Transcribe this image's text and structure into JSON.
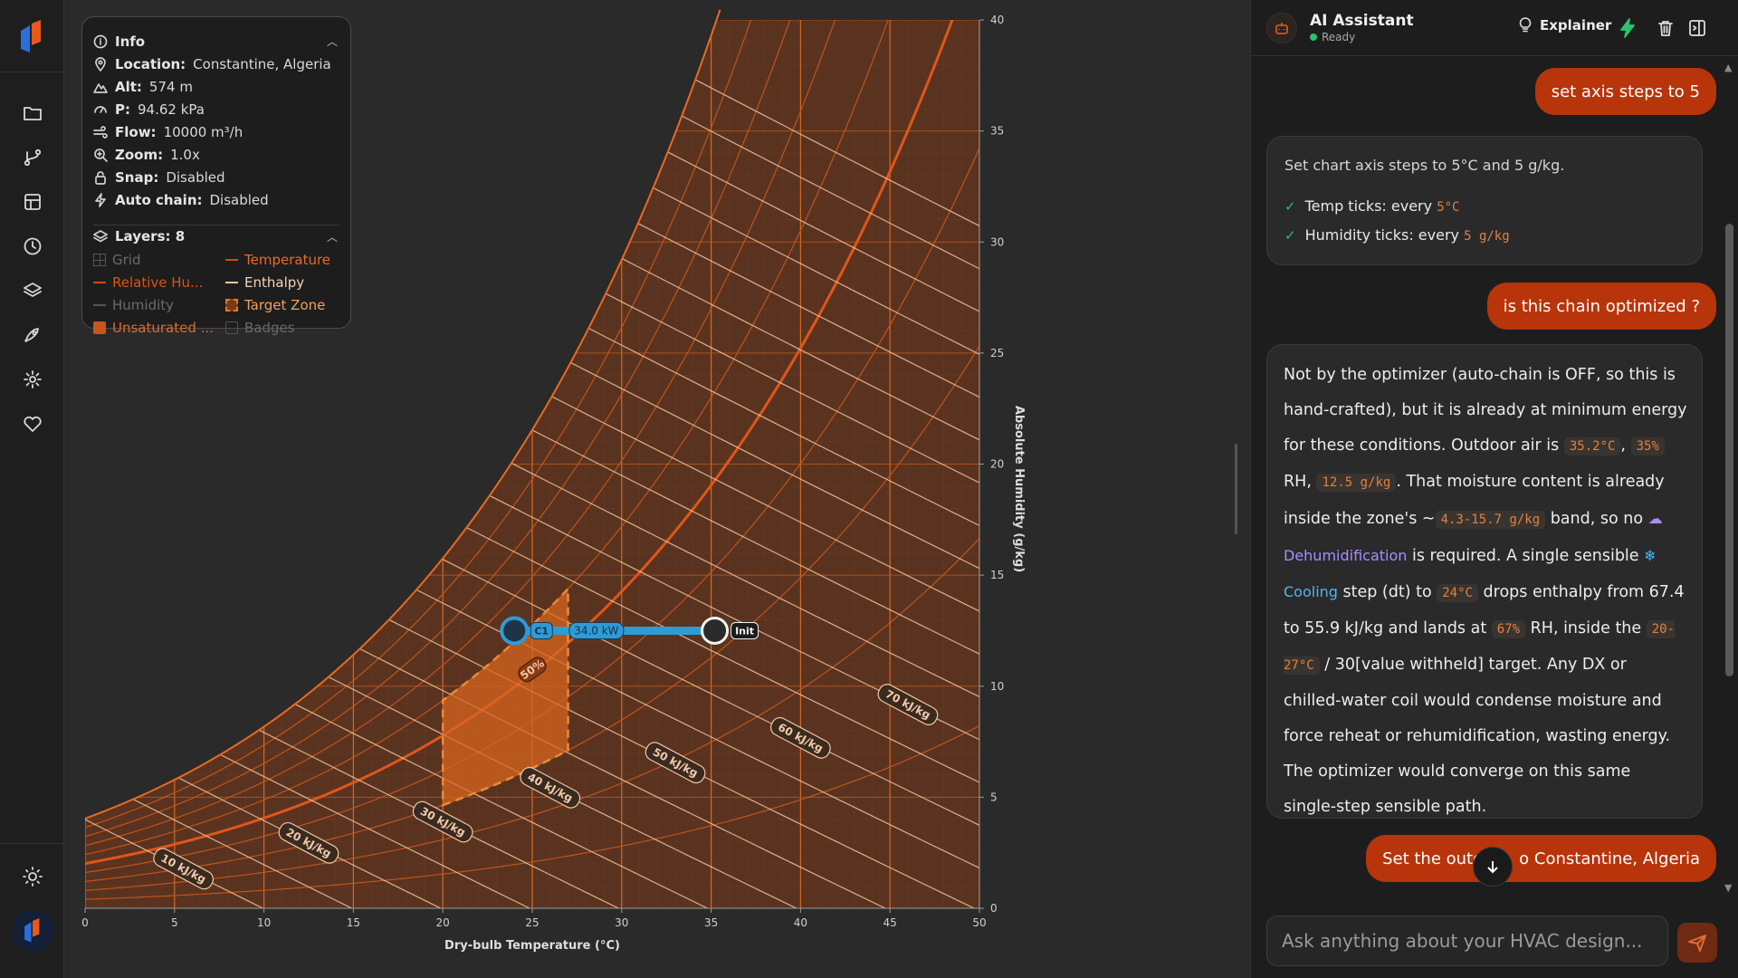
{
  "colors": {
    "accent": "#c8400d",
    "chain_blue": "#2f9bd6",
    "zone_fill": "#c8561a",
    "background": "#2a2a2a",
    "panel": "#1d1d1d"
  },
  "rail": {
    "icons": [
      "folder-icon",
      "git-branch-icon",
      "table-icon",
      "clock-icon",
      "layers-icon",
      "rocket-icon",
      "settings-icon",
      "heart-icon",
      "sun-icon"
    ]
  },
  "info": {
    "title": "Info",
    "rows": [
      {
        "key": "Location:",
        "value": "Constantine, Algeria",
        "icon": "location-pin-icon"
      },
      {
        "key": "Alt:",
        "value": "574 m",
        "icon": "mountain-icon"
      },
      {
        "key": "P:",
        "value": "94.62 kPa",
        "icon": "gauge-icon"
      },
      {
        "key": "Flow:",
        "value": "10000 m³/h",
        "icon": "wind-icon"
      },
      {
        "key": "Zoom:",
        "value": "1.0x",
        "icon": "zoom-icon"
      },
      {
        "key": "Snap:",
        "value": "Disabled",
        "icon": "lock-icon"
      },
      {
        "key": "Auto chain:",
        "value": "Disabled",
        "icon": "bolt-icon"
      }
    ],
    "layers_title": "Layers: 8",
    "layers": [
      {
        "label": "Grid",
        "on": false,
        "style": "grid"
      },
      {
        "label": "Temperature",
        "on": true,
        "style": "line"
      },
      {
        "label": "Relative Hu...",
        "on": true,
        "style": "line"
      },
      {
        "label": "Enthalpy",
        "on": true,
        "style": "line-light"
      },
      {
        "label": "Humidity",
        "on": false,
        "style": "line"
      },
      {
        "label": "Target Zone",
        "on": true,
        "style": "dashed"
      },
      {
        "label": "Unsaturated ...",
        "on": true,
        "style": "fill"
      },
      {
        "label": "Badges",
        "on": false,
        "style": "badge"
      }
    ]
  },
  "chart": {
    "xlabel": "Dry-bulb Temperature (°C)",
    "ylabel": "Absolute Humidity (g/kg)",
    "x_ticks": [
      "0",
      "5",
      "10",
      "15",
      "20",
      "25",
      "30",
      "35",
      "40",
      "45",
      "50"
    ],
    "y_ticks": [
      "0",
      "5",
      "10",
      "15",
      "20",
      "25",
      "30",
      "35",
      "40"
    ],
    "xlim": [
      0,
      50
    ],
    "ylim": [
      0,
      40
    ],
    "enthalpy_labels": [
      "10 kJ/kg",
      "20 kJ/kg",
      "30 kJ/kg",
      "40 kJ/kg",
      "50 kJ/kg",
      "60 kJ/kg",
      "70 kJ/kg"
    ],
    "enthalpy_values": [
      10,
      20,
      30,
      40,
      50,
      60,
      70
    ],
    "rh_label": "50%",
    "target_zone": {
      "t_min": 20,
      "t_max": 27
    },
    "chain": {
      "start_label": "Init",
      "end_label": "C1",
      "power_label": "34.0 kW",
      "init_point": {
        "t": 35.2,
        "w": 12.5
      },
      "c1_point": {
        "t": 24,
        "w": 12.5
      }
    }
  },
  "ai": {
    "title": "AI Assistant",
    "status": "Ready",
    "explainer_label": "Explainer",
    "messages": {
      "u1": "set axis steps to 5",
      "a1_intro": "Set chart axis steps to 5°C and 5 g/kg.",
      "a1_item1_label": "Temp ticks: every ",
      "a1_item1_value": "5°C",
      "a1_item2_label": "Humidity ticks: every ",
      "a1_item2_value": "5 g/kg",
      "u2": "is this chain optimized ?",
      "a2": {
        "p1": "Not by the optimizer (auto-chain is OFF, so this is hand-crafted), but it is already at minimum energy for these conditions. Outdoor air is ",
        "c1": "35.2°C",
        "p2": ", ",
        "c2": "35%",
        "p3": " RH, ",
        "c3": "12.5 g/kg",
        "p4": ". That moisture content is already inside the zone's ~",
        "c4": "4.3-15.7 g/kg",
        "p5": " band, so no ",
        "t1": "Dehumidification",
        "p6": " is required. A single sensible ",
        "t2": "Cooling",
        "p7": " step (dt) to ",
        "c5": "24°C",
        "p8": " drops enthalpy from 67.4 to 55.9 kJ/kg and lands at ",
        "c6": "67%",
        "p9": " RH, inside the ",
        "c7": "20-27°C",
        "p10": " / 30[value withheld] target. Any DX or chilled-water coil would condense moisture and force reheat or rehumidification, wasting energy. The optimizer would converge on this same single-step sensible path."
      },
      "u3": "Set the outdo     o Constantine, Algeria"
    },
    "input_placeholder": "Ask anything about your HVAC design..."
  }
}
